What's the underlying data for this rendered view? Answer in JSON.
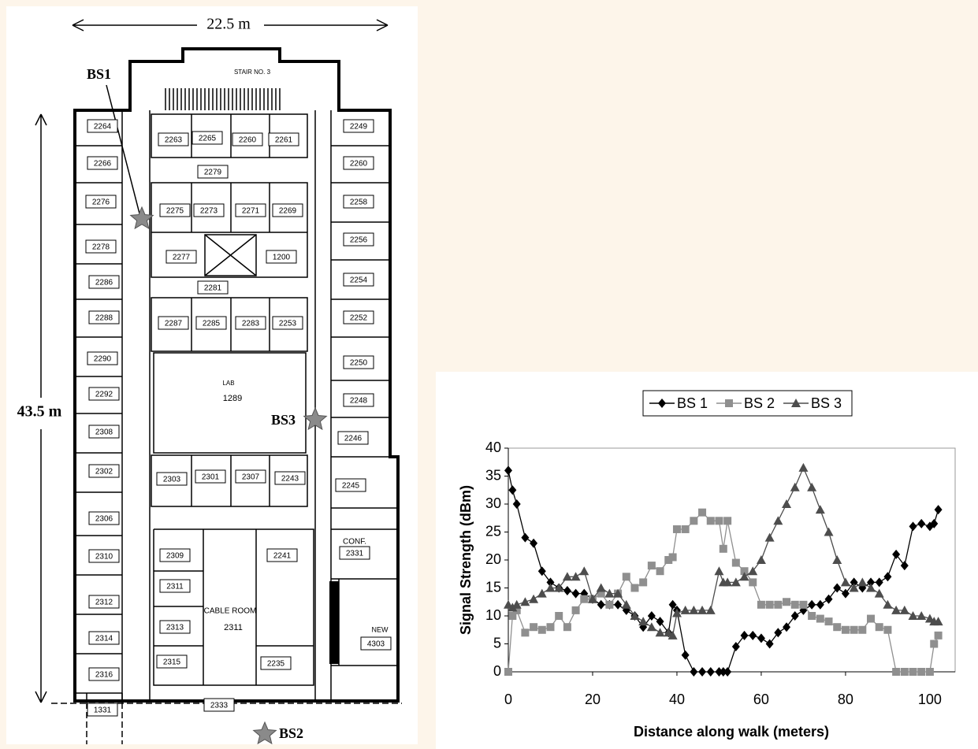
{
  "floor_plan": {
    "width_label": "22.5 m",
    "height_label": "43.5 m",
    "stair": "STAIR NO. 3",
    "base_stations": [
      "BS1",
      "BS2",
      "BS3"
    ],
    "lab": "LAB",
    "lab_room": "1289",
    "cable_room": "CABLE ROOM",
    "cable_room_number": "2311",
    "conf": "CONF.",
    "new": "NEW",
    "rooms": [
      "2264",
      "2266",
      "2276",
      "2278",
      "2286",
      "2288",
      "2290",
      "2292",
      "2308",
      "2302",
      "2306",
      "2310",
      "2312",
      "2314",
      "2316",
      "2249",
      "2260",
      "2258",
      "2256",
      "2254",
      "2252",
      "2250",
      "2248",
      "2246",
      "2245",
      "2263",
      "2265",
      "2260",
      "2261",
      "2279",
      "2275",
      "2273",
      "2271",
      "2269",
      "2277",
      "1200",
      "2281",
      "2287",
      "2285",
      "2283",
      "2253",
      "2303",
      "2301",
      "2307",
      "2243",
      "2309",
      "2311",
      "2313",
      "2315",
      "2241",
      "2235",
      "2331",
      "4303",
      "1331",
      "2333"
    ]
  },
  "chart_data": {
    "type": "line",
    "x_label": "Distance along walk (meters)",
    "y_label": "Signal Strength (dBm)",
    "legend": "top",
    "x": [
      0,
      1,
      2,
      4,
      6,
      8,
      10,
      12,
      14,
      16,
      18,
      20,
      22,
      24,
      26,
      28,
      30,
      32,
      34,
      36,
      38,
      39,
      40,
      42,
      44,
      46,
      48,
      50,
      51,
      52,
      54,
      56,
      58,
      60,
      62,
      64,
      66,
      68,
      70,
      72,
      74,
      76,
      78,
      80,
      82,
      84,
      86,
      88,
      90,
      92,
      94,
      96,
      98,
      100,
      101,
      102
    ],
    "xlim": [
      0,
      106
    ],
    "xticks": [
      0,
      20,
      40,
      60,
      80,
      100
    ],
    "ylim": [
      0,
      40
    ],
    "yticks": [
      0,
      5,
      10,
      15,
      20,
      25,
      30,
      35,
      40
    ],
    "series": [
      {
        "name": "BS 1",
        "color": "#000000",
        "marker": "diamond",
        "values": [
          36,
          32.5,
          30,
          24,
          23,
          18,
          16,
          15,
          14.5,
          14,
          14,
          13,
          12,
          12,
          12,
          11,
          10,
          8,
          10,
          9,
          7,
          12,
          11,
          3,
          0,
          0,
          0,
          0,
          0,
          0,
          4.5,
          6.5,
          6.5,
          6,
          5,
          7,
          8,
          10,
          11,
          12,
          12,
          13,
          15,
          14,
          16,
          15,
          16,
          16,
          17,
          21,
          19,
          26,
          26.5,
          26,
          26.5,
          29
        ]
      },
      {
        "name": "BS 2",
        "color": "#8f8f8f",
        "marker": "square",
        "values": [
          0,
          10,
          11,
          7,
          8,
          7.5,
          8,
          10,
          8,
          11,
          13,
          13,
          14,
          12,
          14,
          17,
          15,
          16,
          19,
          18,
          20,
          20.5,
          25.5,
          25.5,
          27,
          28.5,
          27,
          27,
          22,
          27,
          19.5,
          18,
          16,
          12,
          12,
          12,
          12.5,
          12,
          12,
          10,
          9.5,
          9,
          8,
          7.5,
          7.5,
          7.5,
          9.5,
          8,
          7.5,
          0,
          0,
          0,
          0,
          0,
          5,
          6.5
        ]
      },
      {
        "name": "BS 3",
        "color": "#4d4d4d",
        "marker": "triangle",
        "values": [
          12,
          11.5,
          12,
          12.5,
          13,
          14,
          15,
          15,
          17,
          17,
          18,
          13,
          15,
          14,
          14,
          12,
          10,
          9,
          8,
          7,
          7,
          6.5,
          10.5,
          11,
          11,
          11,
          11,
          18,
          16,
          16,
          16,
          17,
          18,
          20,
          24,
          27,
          30,
          33,
          36.5,
          33,
          29,
          25,
          20,
          16,
          15,
          16,
          15,
          14,
          12,
          11,
          11,
          10,
          10,
          9.5,
          9,
          9
        ]
      }
    ]
  }
}
